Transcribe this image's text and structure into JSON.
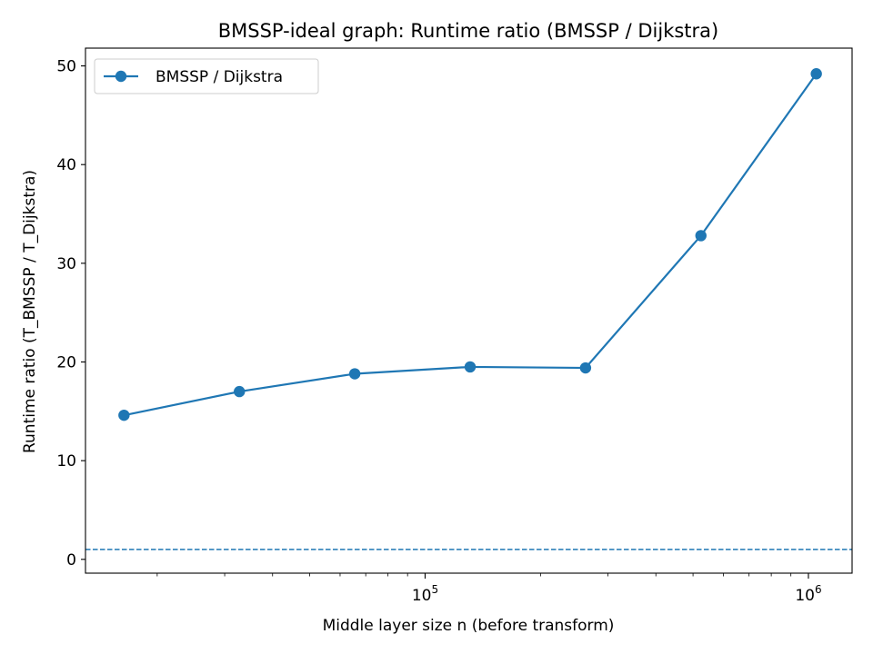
{
  "chart_data": {
    "type": "line",
    "title": "BMSSP-ideal graph: Runtime ratio (BMSSP / Dijkstra)",
    "xlabel": "Middle layer size n (before transform)",
    "ylabel": "Runtime ratio (T_BMSSP / T_Dijkstra)",
    "xscale": "log",
    "xlim": [
      13000,
      1300000
    ],
    "ylim": [
      -1.4,
      51.8
    ],
    "grid": false,
    "legend_position": "top-left",
    "x_major_ticks": [
      {
        "value": 100000,
        "base": "10",
        "exp": "5"
      },
      {
        "value": 1000000,
        "base": "10",
        "exp": "6"
      }
    ],
    "y_ticks": [
      0,
      10,
      20,
      30,
      40,
      50
    ],
    "series": [
      {
        "name": "BMSSP / Dijkstra",
        "color": "#1f77b4",
        "marker": "circle",
        "x": [
          16384,
          32768,
          65536,
          131072,
          262144,
          524288,
          1048576
        ],
        "y": [
          14.6,
          17.0,
          18.8,
          19.5,
          19.4,
          32.8,
          49.2
        ]
      }
    ],
    "reference_line": {
      "y": 1.0,
      "style": "dashed",
      "color": "#1f77b4"
    }
  }
}
